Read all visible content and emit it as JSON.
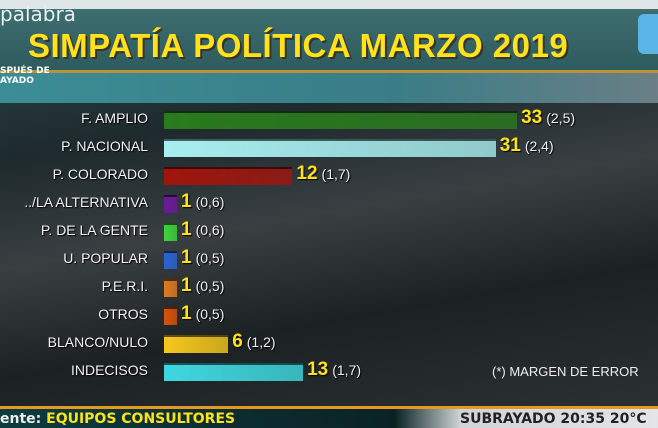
{
  "header": {
    "brand": "palabra",
    "show_line1": "SPUÉS DE",
    "show_line2": "AYADO",
    "title": "SIMPATÍA POLÍTICA MARZO 2019"
  },
  "chart_data": {
    "type": "bar",
    "orientation": "horizontal",
    "title": "SIMPATÍA POLÍTICA MARZO 2019",
    "categories": [
      "F. AMPLIO",
      "P. NACIONAL",
      "P. COLORADO",
      "../LA ALTERNATIVA",
      "P. DE LA GENTE",
      "U. POPULAR",
      "P.E.R.I.",
      "OTROS",
      "BLANCO/NULO",
      "INDECISOS"
    ],
    "values": [
      33,
      31,
      12,
      1,
      1,
      1,
      1,
      1,
      6,
      13
    ],
    "margins": [
      "(2,5)",
      "(2,4)",
      "(1,7)",
      "(0,6)",
      "(0,6)",
      "(0,5)",
      "(0,5)",
      "(0,5)",
      "(1,2)",
      "(1,7)"
    ],
    "colors": [
      "#2a7a1e",
      "#a8eef0",
      "#a0150e",
      "#6a1a9a",
      "#3fd33c",
      "#2a63d6",
      "#e07a20",
      "#d8530a",
      "#f5c81c",
      "#3fd8e0"
    ],
    "note": "(*) MARGEN DE ERROR"
  },
  "footer": {
    "source_label": "ente:",
    "source": "EQUIPOS CONSULTORES",
    "clock": "SUBRAYADO   20:35   20°C"
  }
}
